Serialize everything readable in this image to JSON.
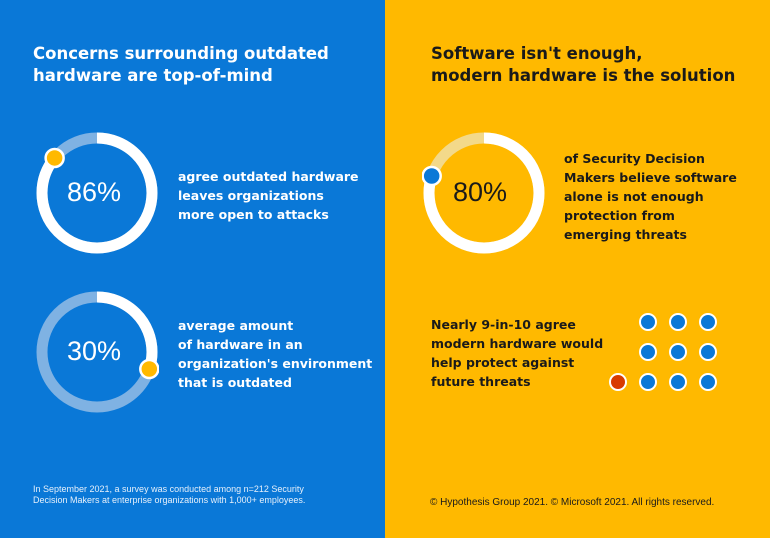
{
  "left": {
    "title": "Concerns surrounding outdated\nhardware are top-of-mind",
    "stats": [
      {
        "value": 86,
        "label": "86%",
        "description": "agree outdated hardware\nleaves organizations\nmore open to attacks"
      },
      {
        "value": 30,
        "label": "30%",
        "description": "average amount\nof hardware in an\norganization's environment\nthat is outdated"
      }
    ],
    "footnote": "In September 2021, a survey was conducted among n=212 Security\nDecision Makers at enterprise organizations with 1,000+ employees."
  },
  "right": {
    "title": "Software isn't enough,\nmodern hardware is the solution",
    "stat": {
      "value": 80,
      "label": "80%",
      "description": "of Security Decision\nMakers believe software\nalone is not enough\nprotection from\nemerging threats"
    },
    "dots_stat": {
      "text": "Nearly 9-in-10 agree\nmodern hardware would\nhelp protect against\nfuture threats",
      "agree": 9,
      "total": 10
    },
    "copyright": "© Hypothesis Group 2021. © Microsoft 2021. All rights reserved."
  },
  "colors": {
    "blue": "#0a78d7",
    "yellow": "#ffb900",
    "red": "#d83b01",
    "white": "#ffffff"
  }
}
